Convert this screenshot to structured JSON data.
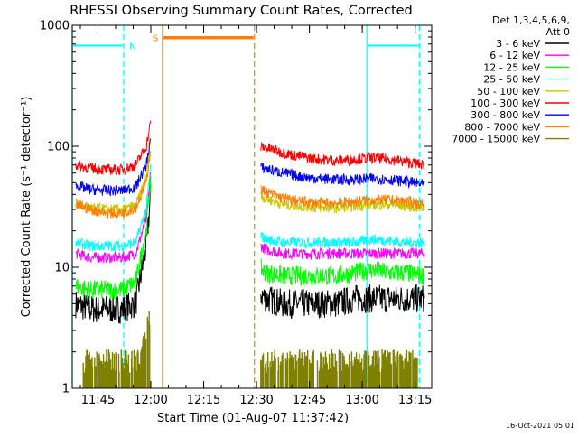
{
  "chart_data": {
    "type": "line",
    "title": "RHESSI Observing Summary Count Rates, Corrected",
    "xlabel": "Start Time (01-Aug-07 11:37:42)",
    "ylabel": "Corrected Count Rate (s⁻¹ detector⁻¹)",
    "y_scale": "log",
    "ylim": [
      1,
      1000
    ],
    "xlim_minutes": [
      0,
      102
    ],
    "x_tick_labels": [
      "11:45",
      "12:00",
      "12:15",
      "12:30",
      "12:45",
      "13:00",
      "13:15"
    ],
    "x_tick_minutes": [
      7.3,
      22.3,
      37.3,
      52.3,
      67.3,
      82.3,
      97.3
    ],
    "y_tick_labels": [
      "1",
      "10",
      "100",
      "1000"
    ],
    "y_tick_values": [
      1,
      10,
      100,
      1000
    ],
    "legend_header": [
      "Det 1,3,4,5,6,9,",
      "Att 0"
    ],
    "legend_position": "top-right-outside",
    "timestamp": "16-Oct-2021 05:01",
    "gap": [
      22.3,
      51.7
    ],
    "flags": [
      {
        "label": "N",
        "color": "#00ffff",
        "y_value": 680,
        "segments": [
          [
            0,
            14.6
          ],
          [
            83.6,
            98.5
          ]
        ]
      },
      {
        "label": "S",
        "color": "#ff8000",
        "y_value": 790,
        "segments": [
          [
            25.6,
            51.7
          ]
        ]
      }
    ],
    "vlines": [
      {
        "x": 0,
        "color": "#00ffff",
        "style": "solid"
      },
      {
        "x": 14.6,
        "color": "#00ffff",
        "style": "dashed"
      },
      {
        "x": 83.6,
        "color": "#00ffff",
        "style": "solid"
      },
      {
        "x": 98.5,
        "color": "#00ffff",
        "style": "dashed"
      },
      {
        "x": 25.6,
        "color": "#ff8000",
        "style": "solid"
      },
      {
        "x": 51.7,
        "color": "#ff8000",
        "style": "dashed"
      }
    ],
    "series": [
      {
        "name": "3 - 6 keV",
        "color": "#000000",
        "x": [
          1,
          5,
          10,
          14,
          18,
          21,
          22.3,
          55,
          60,
          65,
          70,
          75,
          80,
          85,
          90,
          95,
          100
        ],
        "y": [
          5,
          4.5,
          4.5,
          4.5,
          5,
          15,
          40,
          5.5,
          5,
          5,
          5,
          5,
          5.5,
          5.5,
          5.5,
          5.5,
          5.5
        ]
      },
      {
        "name": "6 - 12 keV",
        "color": "#ff00ff",
        "x": [
          1,
          5,
          10,
          14,
          18,
          21,
          22.3,
          55,
          60,
          65,
          70,
          75,
          80,
          85,
          90,
          95,
          100
        ],
        "y": [
          13,
          12,
          12,
          12,
          13,
          25,
          60,
          14,
          13,
          13,
          13,
          13,
          13,
          13,
          13,
          13,
          13
        ]
      },
      {
        "name": "12 - 25 keV",
        "color": "#00ff00",
        "x": [
          1,
          5,
          10,
          14,
          18,
          21,
          22.3,
          55,
          60,
          65,
          70,
          75,
          80,
          85,
          90,
          95,
          100
        ],
        "y": [
          7,
          6.5,
          6.5,
          6.5,
          7.5,
          20,
          55,
          9,
          8.5,
          8.5,
          8.5,
          8.5,
          9,
          9.5,
          9,
          9,
          8.5
        ]
      },
      {
        "name": "25 - 50 keV",
        "color": "#00ffff",
        "x": [
          1,
          5,
          10,
          14,
          18,
          21,
          22.3,
          55,
          60,
          65,
          70,
          75,
          80,
          85,
          90,
          95,
          100
        ],
        "y": [
          16,
          15,
          15,
          15,
          16,
          30,
          70,
          17,
          16,
          16,
          16,
          16,
          16,
          17,
          16.5,
          16,
          16
        ]
      },
      {
        "name": "50 - 100 keV",
        "color": "#c8c800",
        "x": [
          1,
          5,
          10,
          14,
          18,
          21,
          22.3,
          55,
          60,
          65,
          70,
          75,
          80,
          85,
          90,
          95,
          100
        ],
        "y": [
          34,
          31,
          30,
          30,
          32,
          55,
          120,
          37,
          33,
          32,
          31,
          31,
          32,
          33,
          33,
          32,
          31
        ]
      },
      {
        "name": "100 - 300 keV",
        "color": "#ff0000",
        "x": [
          1,
          5,
          10,
          14,
          18,
          21,
          22.3,
          55,
          60,
          65,
          70,
          75,
          80,
          85,
          90,
          95,
          100
        ],
        "y": [
          70,
          66,
          64,
          64,
          70,
          100,
          160,
          97,
          88,
          82,
          78,
          76,
          78,
          80,
          78,
          74,
          70
        ]
      },
      {
        "name": "300 - 800 keV",
        "color": "#0000ff",
        "x": [
          1,
          5,
          10,
          14,
          18,
          21,
          22.3,
          55,
          60,
          65,
          70,
          75,
          80,
          85,
          90,
          95,
          100
        ],
        "y": [
          47,
          44,
          43,
          43,
          46,
          70,
          120,
          65,
          60,
          56,
          54,
          53,
          53,
          54,
          53,
          51,
          48
        ]
      },
      {
        "name": "800 - 7000 keV",
        "color": "#ff8000",
        "x": [
          1,
          5,
          10,
          14,
          18,
          21,
          22.3,
          55,
          60,
          65,
          70,
          75,
          80,
          85,
          90,
          95,
          100
        ],
        "y": [
          33,
          30,
          28,
          28,
          31,
          50,
          100,
          42,
          37,
          35,
          34,
          34,
          35,
          36,
          36,
          35,
          33
        ]
      },
      {
        "name": "7000 - 15000 keV",
        "color": "#808000",
        "x": [
          3,
          5,
          8,
          11,
          13,
          19,
          20,
          21,
          22.3,
          53,
          55,
          70,
          80,
          85,
          90,
          95,
          98
        ],
        "y": [
          1.5,
          1.5,
          1.5,
          1.5,
          1.5,
          1.5,
          2,
          2.5,
          4,
          1.5,
          1.5,
          1.5,
          1.5,
          1.5,
          1.5,
          1.5,
          1.5
        ]
      }
    ]
  }
}
